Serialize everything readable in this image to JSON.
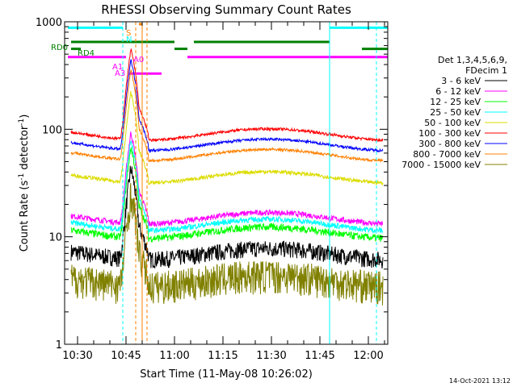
{
  "chart_data": {
    "type": "line",
    "title": "RHESSI Observing Summary Count Rates",
    "xlabel": "Start Time (11-May-08 10:26:02)",
    "ylabel_main": "Count Rate (s",
    "ylabel_sup1": "-1",
    "ylabel_mid": " detector",
    "ylabel_sup2": "-1",
    "ylabel_end": ")",
    "footer": "14-Oct-2021 13:12",
    "x_range_min": [
      26,
      126
    ],
    "y_range": [
      1,
      1000
    ],
    "y_scale": "log",
    "y_ticks": [
      {
        "value": 1,
        "label": "1"
      },
      {
        "value": 10,
        "label": "10"
      },
      {
        "value": 100,
        "label": "100"
      },
      {
        "value": 1000,
        "label": "1000"
      }
    ],
    "x_ticks": [
      {
        "min": 30,
        "label": "10:30"
      },
      {
        "min": 45,
        "label": "10:45"
      },
      {
        "min": 60,
        "label": "11:00"
      },
      {
        "min": 75,
        "label": "11:15"
      },
      {
        "min": 90,
        "label": "11:30"
      },
      {
        "min": 105,
        "label": "11:45"
      },
      {
        "min": 120,
        "label": "12:00"
      }
    ],
    "legend_header": [
      "Det 1,3,4,5,6,9,",
      "FDecim 1"
    ],
    "series": [
      {
        "name": "3 - 6 keV",
        "color": "#000000",
        "base": 7,
        "noise": 0.18
      },
      {
        "name": "6 - 12 keV",
        "color": "#ff00ff",
        "base": 15,
        "noise": 0.06
      },
      {
        "name": "12 - 25 keV",
        "color": "#00ff00",
        "base": 11,
        "noise": 0.08
      },
      {
        "name": "25 - 50 keV",
        "color": "#00ffff",
        "base": 13,
        "noise": 0.06
      },
      {
        "name": "50 - 100 keV",
        "color": "#dcdc00",
        "base": 36,
        "noise": 0.04
      },
      {
        "name": "100 - 300 keV",
        "color": "#ff0000",
        "base": 90,
        "noise": 0.03
      },
      {
        "name": "300 - 800 keV",
        "color": "#0000ff",
        "base": 72,
        "noise": 0.03
      },
      {
        "name": "800 - 7000 keV",
        "color": "#ff8000",
        "base": 58,
        "noise": 0.03
      },
      {
        "name": "7000 - 15000 keV",
        "color": "#808000",
        "base": 4,
        "noise": 0.35
      }
    ],
    "annotations": [
      {
        "text": "RD0",
        "color": "#008000"
      },
      {
        "text": "RD4",
        "color": "#008000"
      },
      {
        "text": "A1",
        "color": "#ff00ff"
      },
      {
        "text": "A3",
        "color": "#ff00ff"
      },
      {
        "text": "A0",
        "color": "#ff00ff"
      },
      {
        "text": "S",
        "color": "#ff8000"
      },
      {
        "text": "N",
        "color": "#00ffff"
      }
    ],
    "grid": false,
    "legend_placement": "right"
  }
}
